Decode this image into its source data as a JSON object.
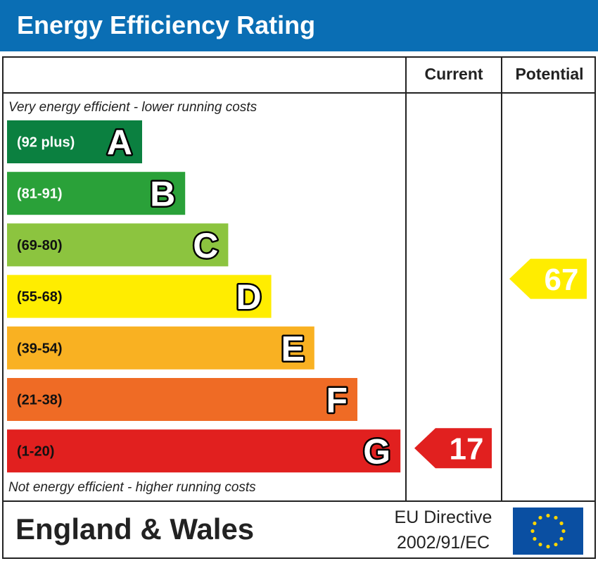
{
  "header": {
    "title": "Energy Efficiency Rating"
  },
  "colors": {
    "header_bg": "#0a6eb4",
    "eu_flag": "#0a4fa2",
    "eu_stars": "#ffd500"
  },
  "chart_data": {
    "type": "bar",
    "columns": {
      "current": "Current",
      "potential": "Potential"
    },
    "top_caption": "Very energy efficient - lower running costs",
    "bottom_caption": "Not energy efficient - higher running costs",
    "bands": [
      {
        "letter": "A",
        "range": "(92 plus)",
        "min": 92,
        "max": null,
        "color": "#0b8040",
        "text_color": "#ffffff"
      },
      {
        "letter": "B",
        "range": "(81-91)",
        "min": 81,
        "max": 91,
        "color": "#2aa139",
        "text_color": "#ffffff"
      },
      {
        "letter": "C",
        "range": "(69-80)",
        "min": 69,
        "max": 80,
        "color": "#8cc43f",
        "text_color": "#111111"
      },
      {
        "letter": "D",
        "range": "(55-68)",
        "min": 55,
        "max": 68,
        "color": "#ffed00",
        "text_color": "#111111"
      },
      {
        "letter": "E",
        "range": "(39-54)",
        "min": 39,
        "max": 54,
        "color": "#f9b122",
        "text_color": "#111111"
      },
      {
        "letter": "F",
        "range": "(21-38)",
        "min": 21,
        "max": 38,
        "color": "#ef6b25",
        "text_color": "#111111"
      },
      {
        "letter": "G",
        "range": "(1-20)",
        "min": 1,
        "max": 20,
        "color": "#e1201f",
        "text_color": "#111111"
      }
    ],
    "current": {
      "value": 17,
      "band": "G",
      "color": "#e1201f"
    },
    "potential": {
      "value": 67,
      "band": "D",
      "color": "#ffed00"
    }
  },
  "footer": {
    "region": "England & Wales",
    "directive_line1": "EU Directive",
    "directive_line2": "2002/91/EC"
  }
}
